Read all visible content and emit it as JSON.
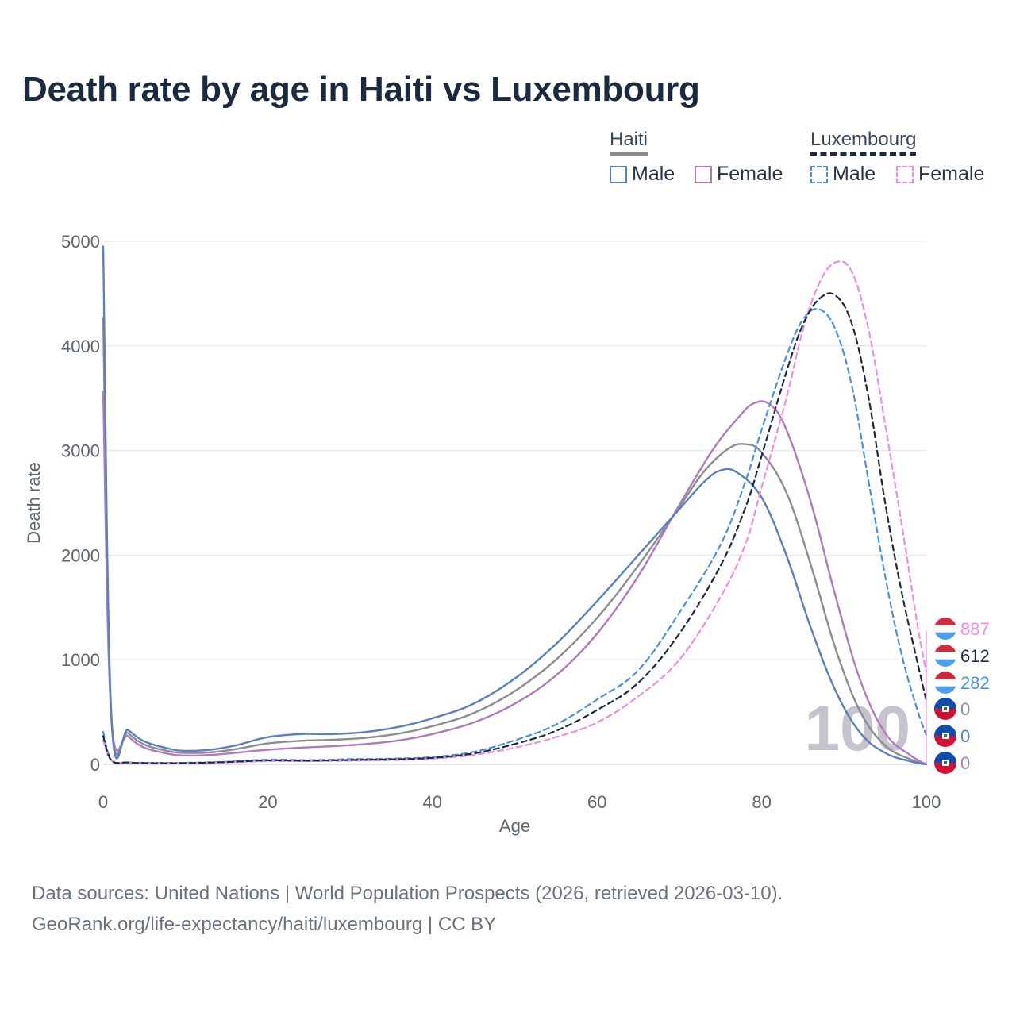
{
  "title": "Death rate by age in Haiti vs Luxembourg",
  "legend": {
    "haiti_label": "Haiti",
    "luxembourg_label": "Luxembourg",
    "male": "Male",
    "female": "Female"
  },
  "colors": {
    "haiti_male": "#5b7fbf",
    "haiti_female": "#b07bbd",
    "haiti_total": "#8c8c92",
    "lux_male": "#4a8fe0",
    "lux_female": "#f08ce0",
    "lux_total": "#1b2a41"
  },
  "watermark": "100",
  "end_labels": [
    {
      "value": "887",
      "series": "lux_female",
      "flag": "luxembourg"
    },
    {
      "value": "612",
      "series": "lux_total",
      "flag": "luxembourg"
    },
    {
      "value": "282",
      "series": "lux_male",
      "flag": "luxembourg"
    },
    {
      "value": "0",
      "series": "haiti_total",
      "flag": "haiti"
    },
    {
      "value": "0",
      "series": "haiti_male",
      "flag": "haiti"
    },
    {
      "value": "0",
      "series": "haiti_female",
      "flag": "haiti"
    }
  ],
  "source": {
    "line1": "Data sources: United Nations | World Population Prospects (2026, retrieved 2026-03-10).",
    "line2": "GeoRank.org/life-expectancy/haiti/luxembourg | CC BY"
  },
  "chart_data": {
    "type": "line",
    "xlabel": "Age",
    "ylabel": "Death rate",
    "xlim": [
      0,
      100
    ],
    "ylim": [
      0,
      5000
    ],
    "xticks": [
      0,
      20,
      40,
      60,
      80,
      100
    ],
    "yticks": [
      0,
      1000,
      2000,
      3000,
      4000,
      5000
    ],
    "grid": true,
    "series": [
      {
        "name": "Haiti Male",
        "key": "haiti_male",
        "dash": false,
        "points": [
          [
            0,
            4950
          ],
          [
            1,
            450
          ],
          [
            3,
            330
          ],
          [
            5,
            220
          ],
          [
            8,
            150
          ],
          [
            10,
            130
          ],
          [
            13,
            140
          ],
          [
            16,
            180
          ],
          [
            20,
            260
          ],
          [
            24,
            290
          ],
          [
            28,
            290
          ],
          [
            32,
            310
          ],
          [
            36,
            360
          ],
          [
            40,
            440
          ],
          [
            45,
            580
          ],
          [
            50,
            820
          ],
          [
            55,
            1150
          ],
          [
            60,
            1560
          ],
          [
            65,
            2000
          ],
          [
            70,
            2440
          ],
          [
            73,
            2700
          ],
          [
            75,
            2810
          ],
          [
            77,
            2790
          ],
          [
            80,
            2550
          ],
          [
            83,
            2000
          ],
          [
            86,
            1300
          ],
          [
            89,
            700
          ],
          [
            92,
            300
          ],
          [
            95,
            110
          ],
          [
            98,
            30
          ],
          [
            100,
            0
          ]
        ]
      },
      {
        "name": "Haiti Female",
        "key": "haiti_female",
        "dash": false,
        "points": [
          [
            0,
            3560
          ],
          [
            1,
            430
          ],
          [
            3,
            270
          ],
          [
            5,
            160
          ],
          [
            8,
            100
          ],
          [
            10,
            85
          ],
          [
            13,
            90
          ],
          [
            16,
            110
          ],
          [
            20,
            140
          ],
          [
            24,
            160
          ],
          [
            28,
            175
          ],
          [
            32,
            195
          ],
          [
            36,
            230
          ],
          [
            40,
            290
          ],
          [
            45,
            400
          ],
          [
            50,
            580
          ],
          [
            55,
            850
          ],
          [
            60,
            1250
          ],
          [
            65,
            1800
          ],
          [
            70,
            2480
          ],
          [
            74,
            3000
          ],
          [
            77,
            3300
          ],
          [
            79,
            3450
          ],
          [
            81,
            3440
          ],
          [
            83,
            3200
          ],
          [
            86,
            2500
          ],
          [
            89,
            1600
          ],
          [
            92,
            800
          ],
          [
            95,
            300
          ],
          [
            98,
            90
          ],
          [
            100,
            0
          ]
        ]
      },
      {
        "name": "Haiti",
        "key": "haiti_total",
        "dash": false,
        "points": [
          [
            0,
            4270
          ],
          [
            1,
            440
          ],
          [
            3,
            300
          ],
          [
            5,
            190
          ],
          [
            8,
            125
          ],
          [
            10,
            110
          ],
          [
            13,
            115
          ],
          [
            16,
            145
          ],
          [
            20,
            200
          ],
          [
            24,
            225
          ],
          [
            28,
            235
          ],
          [
            32,
            255
          ],
          [
            36,
            295
          ],
          [
            40,
            365
          ],
          [
            45,
            490
          ],
          [
            50,
            700
          ],
          [
            55,
            1000
          ],
          [
            60,
            1400
          ],
          [
            65,
            1900
          ],
          [
            70,
            2460
          ],
          [
            73,
            2800
          ],
          [
            76,
            3020
          ],
          [
            78,
            3060
          ],
          [
            80,
            2980
          ],
          [
            83,
            2600
          ],
          [
            86,
            1900
          ],
          [
            89,
            1100
          ],
          [
            92,
            500
          ],
          [
            95,
            180
          ],
          [
            98,
            50
          ],
          [
            100,
            0
          ]
        ]
      },
      {
        "name": "Luxembourg Male",
        "key": "lux_male",
        "dash": true,
        "points": [
          [
            0,
            310
          ],
          [
            1,
            40
          ],
          [
            3,
            20
          ],
          [
            5,
            15
          ],
          [
            10,
            15
          ],
          [
            15,
            25
          ],
          [
            20,
            45
          ],
          [
            25,
            40
          ],
          [
            30,
            50
          ],
          [
            35,
            55
          ],
          [
            40,
            70
          ],
          [
            45,
            120
          ],
          [
            50,
            230
          ],
          [
            55,
            380
          ],
          [
            60,
            620
          ],
          [
            65,
            900
          ],
          [
            70,
            1450
          ],
          [
            75,
            2100
          ],
          [
            78,
            2700
          ],
          [
            80,
            3200
          ],
          [
            83,
            3900
          ],
          [
            85,
            4250
          ],
          [
            87,
            4350
          ],
          [
            89,
            4150
          ],
          [
            91,
            3600
          ],
          [
            93,
            2700
          ],
          [
            95,
            1800
          ],
          [
            97,
            1050
          ],
          [
            99,
            500
          ],
          [
            100,
            282
          ]
        ]
      },
      {
        "name": "Luxembourg Female",
        "key": "lux_female",
        "dash": true,
        "points": [
          [
            0,
            230
          ],
          [
            1,
            35
          ],
          [
            3,
            15
          ],
          [
            5,
            10
          ],
          [
            10,
            10
          ],
          [
            15,
            18
          ],
          [
            20,
            30
          ],
          [
            25,
            30
          ],
          [
            30,
            35
          ],
          [
            35,
            40
          ],
          [
            40,
            55
          ],
          [
            45,
            90
          ],
          [
            50,
            160
          ],
          [
            55,
            260
          ],
          [
            60,
            400
          ],
          [
            65,
            650
          ],
          [
            70,
            1000
          ],
          [
            75,
            1600
          ],
          [
            78,
            2100
          ],
          [
            80,
            2650
          ],
          [
            83,
            3500
          ],
          [
            85,
            4150
          ],
          [
            87,
            4600
          ],
          [
            89,
            4800
          ],
          [
            91,
            4700
          ],
          [
            93,
            4150
          ],
          [
            95,
            3250
          ],
          [
            97,
            2300
          ],
          [
            99,
            1300
          ],
          [
            100,
            887
          ]
        ]
      },
      {
        "name": "Luxembourg",
        "key": "lux_total",
        "dash": true,
        "points": [
          [
            0,
            270
          ],
          [
            1,
            38
          ],
          [
            3,
            18
          ],
          [
            5,
            12
          ],
          [
            10,
            12
          ],
          [
            15,
            22
          ],
          [
            20,
            38
          ],
          [
            25,
            35
          ],
          [
            30,
            42
          ],
          [
            35,
            48
          ],
          [
            40,
            62
          ],
          [
            45,
            105
          ],
          [
            50,
            195
          ],
          [
            55,
            320
          ],
          [
            60,
            520
          ],
          [
            65,
            780
          ],
          [
            70,
            1250
          ],
          [
            75,
            1900
          ],
          [
            78,
            2450
          ],
          [
            80,
            2950
          ],
          [
            83,
            3750
          ],
          [
            85,
            4200
          ],
          [
            87,
            4450
          ],
          [
            89,
            4480
          ],
          [
            91,
            4200
          ],
          [
            93,
            3500
          ],
          [
            95,
            2500
          ],
          [
            97,
            1650
          ],
          [
            99,
            950
          ],
          [
            100,
            612
          ]
        ]
      }
    ]
  }
}
